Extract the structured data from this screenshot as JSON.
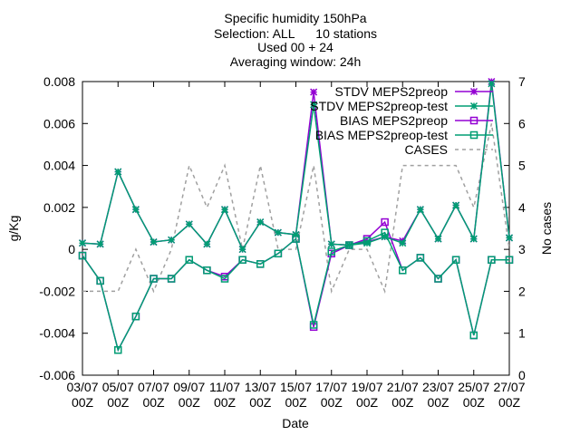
{
  "chart_data": {
    "type": "line",
    "title_lines": [
      "Specific humidity 150hPa",
      "Selection: ALL      10 stations",
      "Used 00 + 24",
      "Averaging window: 24h"
    ],
    "xlabel": "Date",
    "ylabel_left": "g/Kg",
    "ylabel_right": "No cases",
    "ylim_left": [
      -0.006,
      0.008
    ],
    "ylim_right": [
      0,
      7
    ],
    "xlim": [
      0,
      24
    ],
    "y_ticks_left": [
      "-0.006",
      "-0.004",
      "-0.002",
      "0",
      "0.002",
      "0.004",
      "0.006",
      "0.008"
    ],
    "y_ticks_right": [
      "0",
      "1",
      "2",
      "3",
      "4",
      "5",
      "6",
      "7"
    ],
    "x_ticks": [
      [
        "03/07",
        "00Z"
      ],
      [
        "05/07",
        "00Z"
      ],
      [
        "07/07",
        "00Z"
      ],
      [
        "09/07",
        "00Z"
      ],
      [
        "11/07",
        "00Z"
      ],
      [
        "13/07",
        "00Z"
      ],
      [
        "15/07",
        "00Z"
      ],
      [
        "17/07",
        "00Z"
      ],
      [
        "19/07",
        "00Z"
      ],
      [
        "21/07",
        "00Z"
      ],
      [
        "23/07",
        "00Z"
      ],
      [
        "25/07",
        "00Z"
      ],
      [
        "27/07",
        "00Z"
      ]
    ],
    "x": [
      0,
      1,
      2,
      3,
      4,
      5,
      6,
      7,
      8,
      9,
      10,
      11,
      12,
      13,
      14,
      15,
      16,
      17,
      18,
      19,
      20,
      21,
      22,
      23,
      24
    ],
    "series": [
      {
        "name": "STDV MEPS2preop",
        "axis": "left",
        "color": "#9400d3",
        "marker": "star",
        "values": [
          0.0003,
          0.00025,
          0.0037,
          0.0019,
          0.00035,
          0.00045,
          0.0012,
          0.00025,
          0.0019,
          0.0,
          0.0013,
          0.0008,
          0.0007,
          0.0075,
          0.00025,
          0.0002,
          0.00035,
          0.0006,
          0.0004,
          0.0019,
          0.0005,
          0.0021,
          0.0005,
          0.008,
          0.00055
        ]
      },
      {
        "name": "STDV MEPS2preop-test",
        "axis": "left",
        "color": "#009e73",
        "marker": "star",
        "values": [
          0.0003,
          0.00025,
          0.0037,
          0.0019,
          0.00035,
          0.00045,
          0.0012,
          0.00025,
          0.0019,
          0.0,
          0.0013,
          0.0008,
          0.0007,
          0.0069,
          0.00025,
          0.0002,
          0.0003,
          0.0006,
          0.0003,
          0.0019,
          0.0005,
          0.0021,
          0.0005,
          0.0079,
          0.00055
        ]
      },
      {
        "name": "BIAS MEPS2preop",
        "axis": "left",
        "color": "#9400d3",
        "marker": "square",
        "values": [
          -0.0003,
          -0.0015,
          -0.0048,
          -0.0032,
          -0.0014,
          -0.0014,
          -0.0005,
          -0.001,
          -0.0013,
          -0.0005,
          -0.0007,
          -0.0002,
          0.0005,
          -0.0037,
          -0.0002,
          0.0002,
          0.0005,
          0.0013,
          -0.001,
          -0.0004,
          -0.0014,
          -0.0005,
          -0.0041,
          -0.0005,
          -0.0005
        ]
      },
      {
        "name": "BIAS MEPS2preop-test",
        "axis": "left",
        "color": "#009e73",
        "marker": "square",
        "values": [
          -0.0003,
          -0.0015,
          -0.0048,
          -0.0032,
          -0.0014,
          -0.0014,
          -0.0005,
          -0.001,
          -0.0014,
          -0.0005,
          -0.0007,
          -0.0002,
          0.0005,
          -0.0036,
          -0.0001,
          0.0002,
          0.0004,
          0.0008,
          -0.001,
          -0.0004,
          -0.0014,
          -0.0005,
          -0.0041,
          -0.0005,
          -0.0005
        ]
      },
      {
        "name": "CASES",
        "axis": "right",
        "color": "#a0a0a0",
        "marker": "none",
        "dashed": true,
        "values": [
          2,
          2,
          2,
          3,
          2,
          3,
          5,
          4,
          5,
          3,
          5,
          3,
          3,
          5,
          2,
          3,
          3,
          2,
          5,
          5,
          5,
          5,
          4,
          6,
          3
        ]
      }
    ],
    "legend_position": "top-right",
    "grid": false
  }
}
